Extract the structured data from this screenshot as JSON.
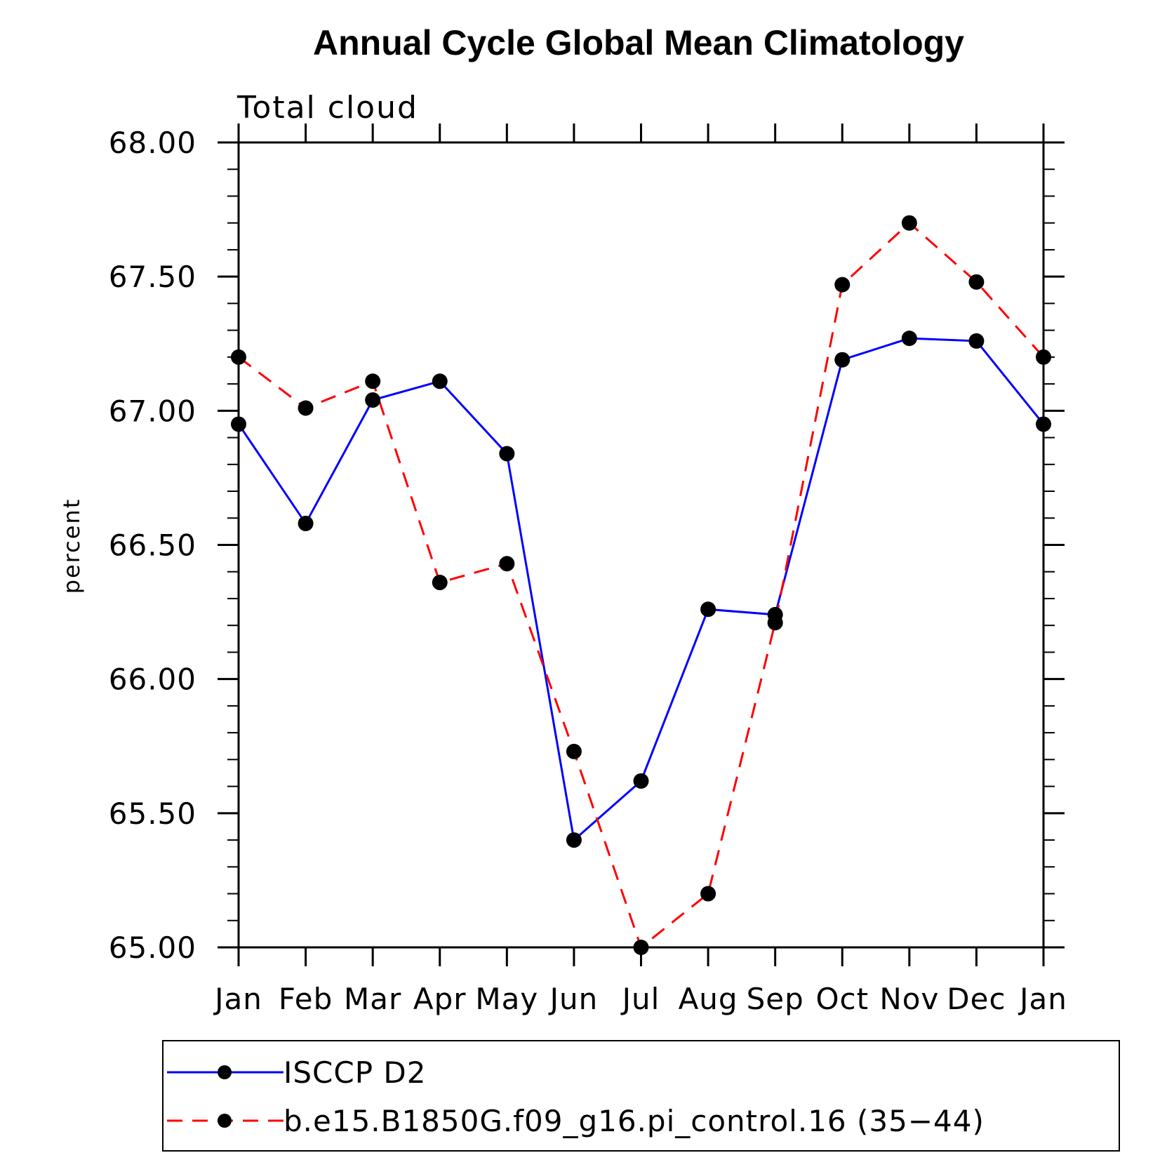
{
  "chart_data": {
    "type": "line",
    "title": "Annual Cycle Global Mean Climatology",
    "subtitle": "Total cloud",
    "xlabel": "",
    "ylabel": "percent",
    "categories": [
      "Jan",
      "Feb",
      "Mar",
      "Apr",
      "May",
      "Jun",
      "Jul",
      "Aug",
      "Sep",
      "Oct",
      "Nov",
      "Dec",
      "Jan"
    ],
    "ylim": [
      65.0,
      68.0
    ],
    "yticks": [
      "65.00",
      "65.50",
      "66.00",
      "66.50",
      "67.00",
      "67.50",
      "68.00"
    ],
    "ytick_values": [
      65.0,
      65.5,
      66.0,
      66.5,
      67.0,
      67.5,
      68.0
    ],
    "series": [
      {
        "name": "ISCCP D2",
        "color": "#0000ff",
        "dashed": false,
        "values": [
          66.95,
          66.58,
          67.04,
          67.11,
          66.84,
          65.4,
          65.62,
          66.26,
          66.24,
          67.19,
          67.27,
          67.26,
          66.95
        ]
      },
      {
        "name": "b.e15.B1850G.f09_g16.pi_control.16 (35−44)",
        "color": "#ff0000",
        "dashed": true,
        "values": [
          67.2,
          67.01,
          67.11,
          66.36,
          66.43,
          65.73,
          65.0,
          65.2,
          66.21,
          67.47,
          67.7,
          67.48,
          67.2
        ]
      }
    ],
    "legend_position": "bottom"
  }
}
